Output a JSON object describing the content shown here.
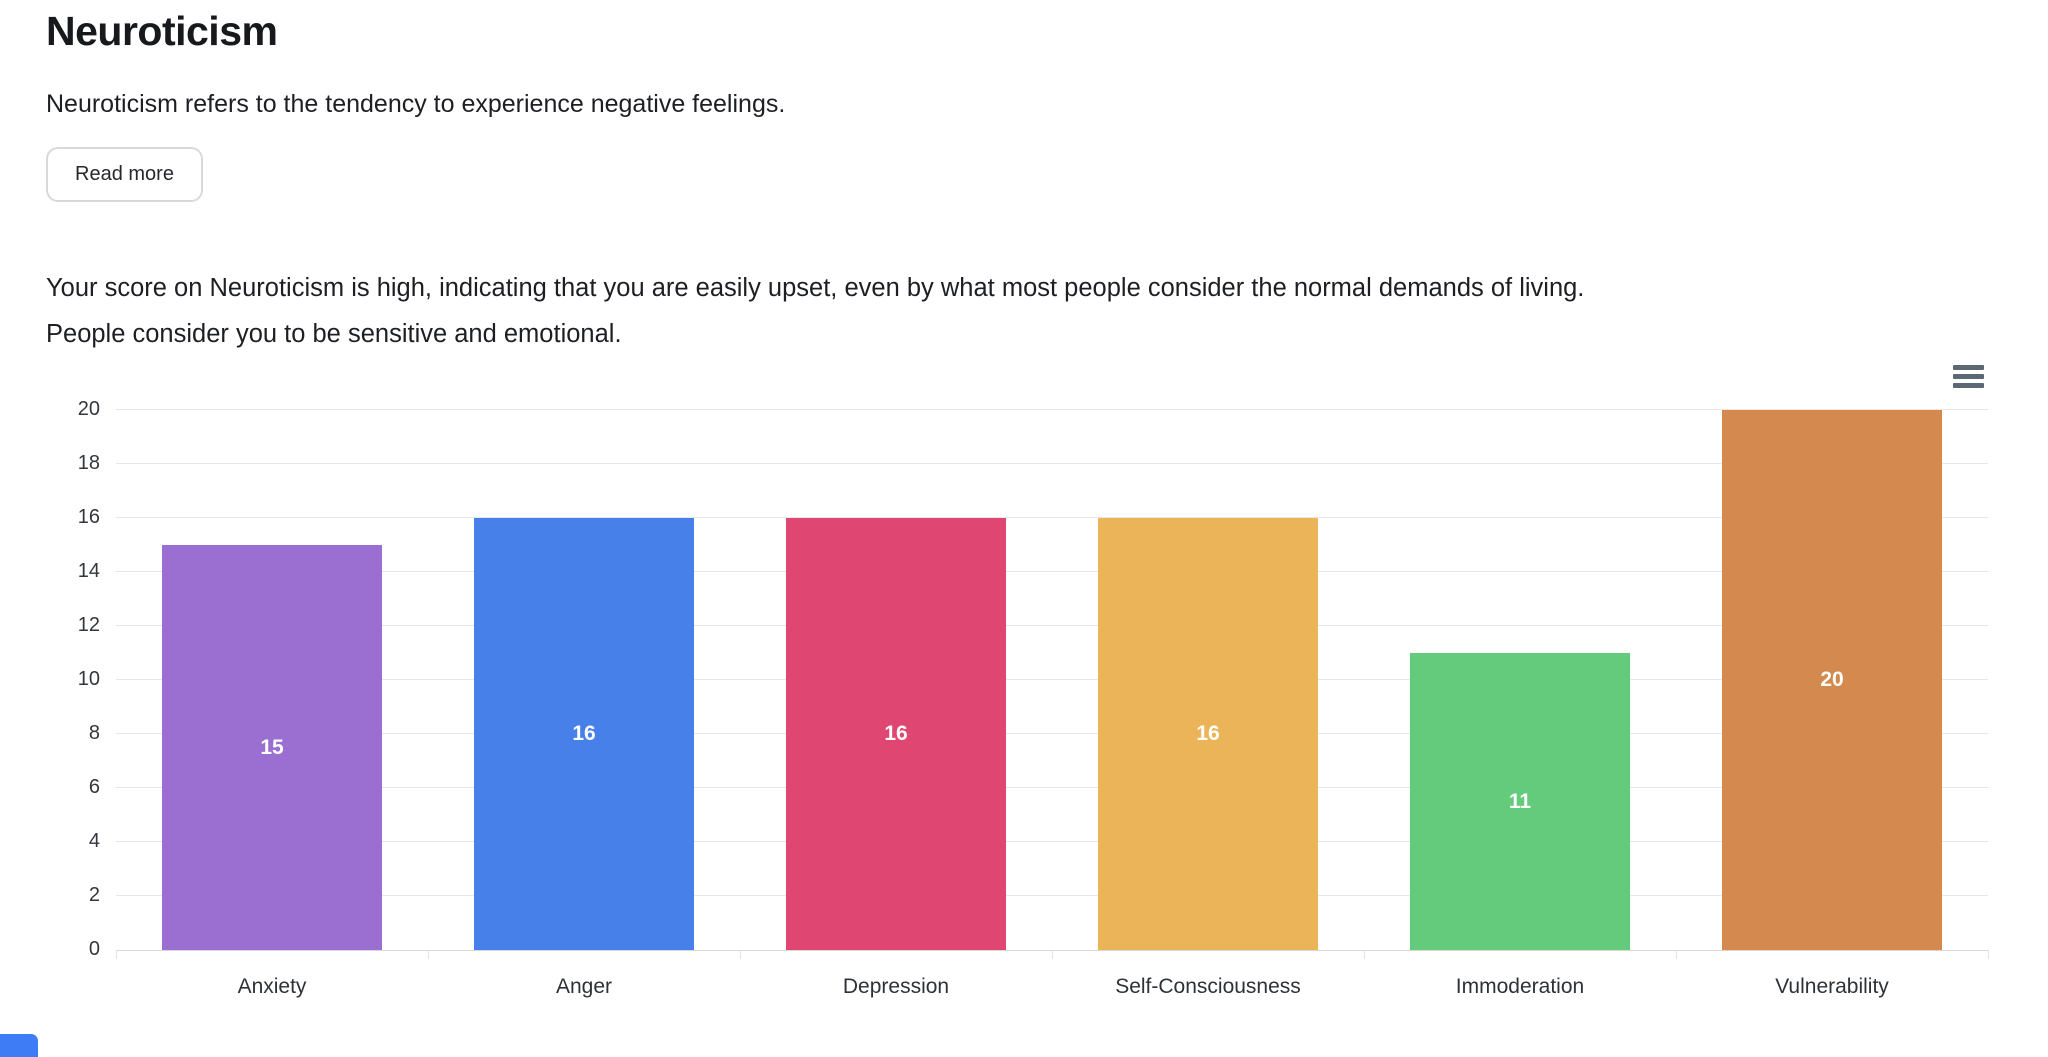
{
  "page": {
    "title": "Neuroticism",
    "subtitle": "Neuroticism refers to the tendency to experience negative feelings.",
    "read_more_label": "Read more",
    "score_lines": [
      "Your score on Neuroticism is high, indicating that you are easily upset, even by what most people consider the normal demands of living.",
      "People consider you to be sensitive and emotional."
    ]
  },
  "chart": {
    "menu_icon": "hamburger-icon",
    "menu_icon_color": "#5c6874",
    "gridline_color": "#e7e7e7",
    "axis_line_color": "#d8d8d8",
    "tick_label_color": "#33373c"
  },
  "chart_data": {
    "type": "bar",
    "title": "",
    "xlabel": "",
    "ylabel": "",
    "categories": [
      "Anxiety",
      "Anger",
      "Depression",
      "Self-Consciousness",
      "Immoderation",
      "Vulnerability"
    ],
    "values": [
      15,
      16,
      16,
      16,
      11,
      20
    ],
    "colors": [
      "#9b6fd2",
      "#4680e8",
      "#df4672",
      "#ebb458",
      "#64cb7c",
      "#d4894e"
    ],
    "bar_label_color": "#ffffff",
    "ylim": [
      0,
      20
    ],
    "ytick_step": 2,
    "grid": true,
    "legend": "none",
    "value_labels_position": "center-inside"
  },
  "misc": {
    "bottom_left_accent_color": "#3e7cf6"
  }
}
